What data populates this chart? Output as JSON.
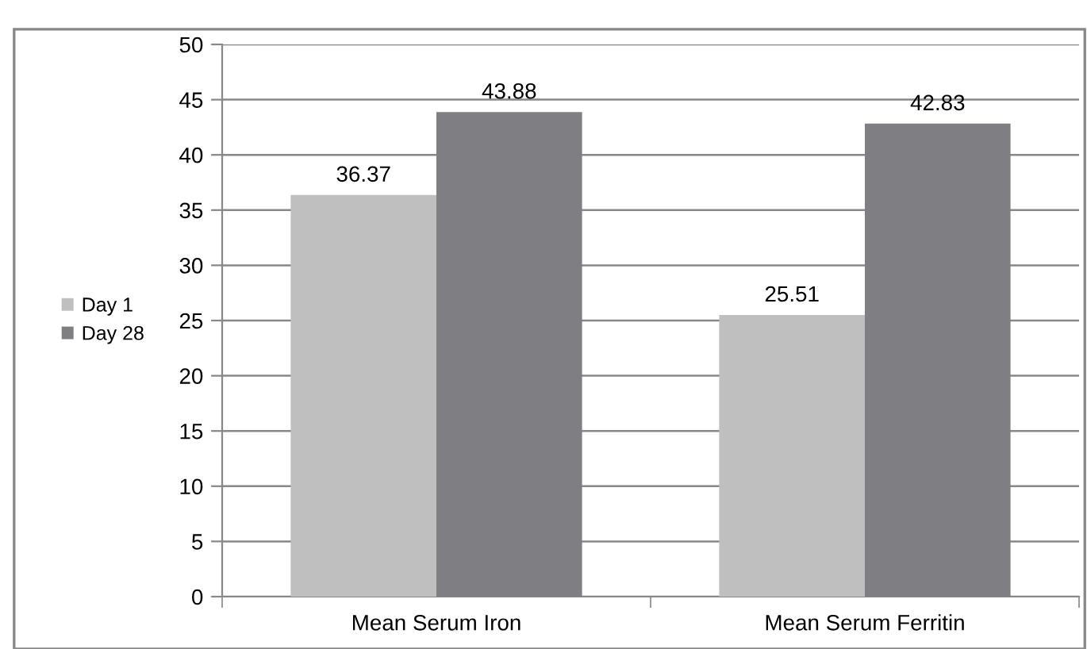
{
  "chart_data": {
    "type": "bar",
    "categories": [
      "Mean Serum Iron",
      "Mean Serum Ferritin"
    ],
    "series": [
      {
        "name": "Day 1",
        "color": "#bfbfbf",
        "values": [
          36.37,
          25.51
        ]
      },
      {
        "name": "Day 28",
        "color": "#7f7f83",
        "values": [
          43.88,
          42.83
        ]
      }
    ],
    "ylim": [
      0,
      50
    ],
    "yticks": [
      0,
      5,
      10,
      15,
      20,
      25,
      30,
      35,
      40,
      45,
      50
    ],
    "grid": "y",
    "legend": "left",
    "data_labels": true
  }
}
